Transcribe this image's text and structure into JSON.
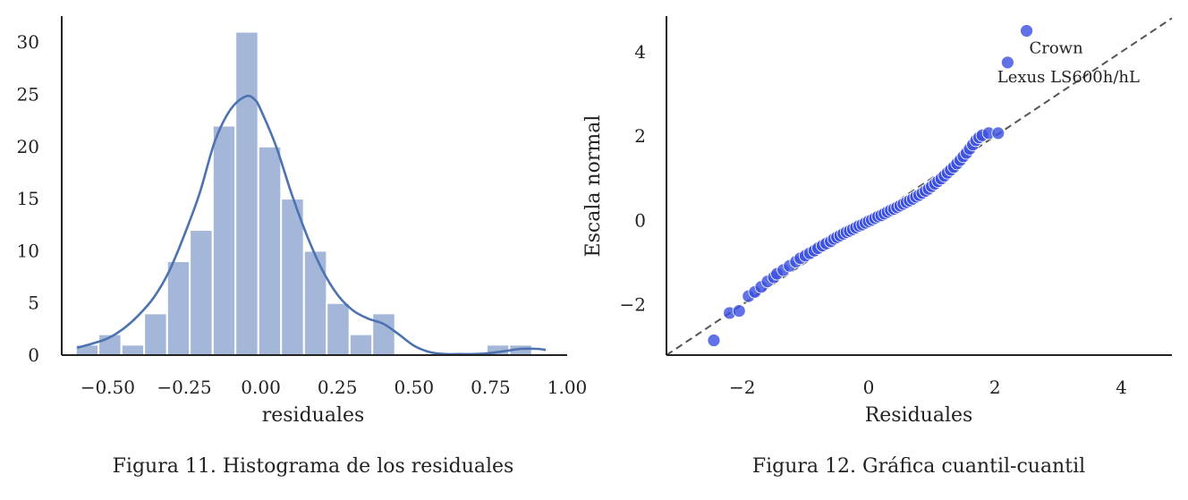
{
  "captions": {
    "left": "Figura 11. Histograma de los residuales",
    "right": "Figura 12. Gráfica cuantil-cuantil"
  },
  "chart_data": [
    {
      "type": "bar",
      "subtype": "histogram-with-kde",
      "xlabel": "residuales",
      "ylabel": "",
      "xlim": [
        -0.65,
        1.0
      ],
      "ylim": [
        0,
        32.5
      ],
      "xticks": [
        -0.5,
        -0.25,
        0.0,
        0.25,
        0.5,
        0.75,
        1.0
      ],
      "xtick_labels": [
        "−0.50",
        "−0.25",
        "0.00",
        "0.25",
        "0.50",
        "0.75",
        "1.00"
      ],
      "yticks": [
        0,
        5,
        10,
        15,
        20,
        25,
        30
      ],
      "ytick_labels": [
        "0",
        "5",
        "10",
        "15",
        "20",
        "25",
        "30"
      ],
      "bin_width": 0.0745,
      "bins": [
        {
          "start": -0.604,
          "count": 1
        },
        {
          "start": -0.53,
          "count": 2
        },
        {
          "start": -0.455,
          "count": 1
        },
        {
          "start": -0.381,
          "count": 4
        },
        {
          "start": -0.306,
          "count": 9
        },
        {
          "start": -0.232,
          "count": 12
        },
        {
          "start": -0.157,
          "count": 22
        },
        {
          "start": -0.083,
          "count": 31
        },
        {
          "start": -0.008,
          "count": 20
        },
        {
          "start": 0.066,
          "count": 15
        },
        {
          "start": 0.141,
          "count": 10
        },
        {
          "start": 0.215,
          "count": 5
        },
        {
          "start": 0.29,
          "count": 2
        },
        {
          "start": 0.364,
          "count": 4
        },
        {
          "start": 0.439,
          "count": 0
        },
        {
          "start": 0.513,
          "count": 0
        },
        {
          "start": 0.588,
          "count": 0
        },
        {
          "start": 0.662,
          "count": 0
        },
        {
          "start": 0.737,
          "count": 1
        },
        {
          "start": 0.811,
          "count": 1
        }
      ],
      "kde": {
        "x": [
          -0.6,
          -0.55,
          -0.5,
          -0.45,
          -0.4,
          -0.35,
          -0.3,
          -0.25,
          -0.2,
          -0.15,
          -0.1,
          -0.05,
          -0.02,
          0.0,
          0.05,
          0.1,
          0.15,
          0.2,
          0.25,
          0.3,
          0.35,
          0.4,
          0.45,
          0.5,
          0.55,
          0.6,
          0.65,
          0.7,
          0.75,
          0.8,
          0.85,
          0.9,
          0.93
        ],
        "y": [
          0.7,
          1.1,
          1.6,
          2.5,
          3.8,
          5.5,
          8.0,
          11.5,
          15.5,
          20.5,
          23.5,
          24.8,
          24.5,
          23.5,
          20.0,
          15.5,
          11.5,
          8.2,
          5.8,
          4.3,
          3.5,
          3.0,
          2.0,
          0.9,
          0.3,
          0.1,
          0.1,
          0.1,
          0.2,
          0.4,
          0.6,
          0.6,
          0.5
        ]
      },
      "colors": {
        "bar": "#a5b7d9",
        "bar_edge": "#ffffff",
        "kde": "#4c72b0"
      },
      "grid": false
    },
    {
      "type": "scatter",
      "subtype": "qq-plot",
      "xlabel": "Residuales",
      "ylabel": "Escala normal",
      "xlim": [
        -3.2,
        4.8
      ],
      "ylim": [
        -3.2,
        4.85
      ],
      "xticks": [
        -2,
        0,
        2,
        4
      ],
      "xtick_labels": [
        "−2",
        "0",
        "2",
        "4"
      ],
      "yticks": [
        -2,
        0,
        2,
        4
      ],
      "ytick_labels": [
        "−2",
        "0",
        "2",
        "4"
      ],
      "reference_line": {
        "x": [
          -3.2,
          4.8
        ],
        "y": [
          -3.2,
          4.8
        ],
        "style": "dashed",
        "color": "#555555"
      },
      "points": {
        "x": [
          -2.45,
          -2.2,
          -2.05,
          -1.9,
          -1.8,
          -1.7,
          -1.6,
          -1.5,
          -1.45,
          -1.35,
          -1.25,
          -1.15,
          -1.08,
          -1.0,
          -0.93,
          -0.86,
          -0.8,
          -0.73,
          -0.67,
          -0.6,
          -0.55,
          -0.5,
          -0.45,
          -0.4,
          -0.35,
          -0.3,
          -0.25,
          -0.2,
          -0.15,
          -0.1,
          -0.05,
          0.0,
          0.05,
          0.1,
          0.15,
          0.2,
          0.25,
          0.3,
          0.35,
          0.4,
          0.45,
          0.5,
          0.55,
          0.6,
          0.65,
          0.7,
          0.75,
          0.8,
          0.85,
          0.9,
          0.95,
          1.0,
          1.05,
          1.1,
          1.15,
          1.2,
          1.25,
          1.3,
          1.35,
          1.4,
          1.45,
          1.5,
          1.55,
          1.6,
          1.65,
          1.7,
          1.75,
          1.8,
          1.9,
          2.05,
          2.2,
          2.5
        ],
        "y": [
          -2.85,
          -2.2,
          -2.15,
          -1.8,
          -1.7,
          -1.58,
          -1.45,
          -1.35,
          -1.27,
          -1.18,
          -1.08,
          -0.98,
          -0.9,
          -0.84,
          -0.78,
          -0.72,
          -0.66,
          -0.6,
          -0.55,
          -0.5,
          -0.44,
          -0.4,
          -0.36,
          -0.32,
          -0.28,
          -0.25,
          -0.21,
          -0.17,
          -0.13,
          -0.1,
          -0.06,
          -0.02,
          0.01,
          0.05,
          0.09,
          0.12,
          0.16,
          0.2,
          0.24,
          0.27,
          0.31,
          0.35,
          0.39,
          0.43,
          0.47,
          0.51,
          0.56,
          0.6,
          0.65,
          0.7,
          0.75,
          0.81,
          0.87,
          0.93,
          0.99,
          1.06,
          1.13,
          1.2,
          1.27,
          1.35,
          1.43,
          1.52,
          1.6,
          1.7,
          1.8,
          1.9,
          1.97,
          2.02,
          2.07,
          2.07,
          3.75,
          4.5
        ]
      },
      "annotations": [
        {
          "text": "Crown",
          "x": 2.5,
          "y": 4.5
        },
        {
          "text": "Lexus LS600h/hL",
          "x": 2.2,
          "y": 3.75
        }
      ],
      "colors": {
        "point": "#3a4fe0",
        "point_fill_opacity": "0.8"
      },
      "grid": false
    }
  ]
}
